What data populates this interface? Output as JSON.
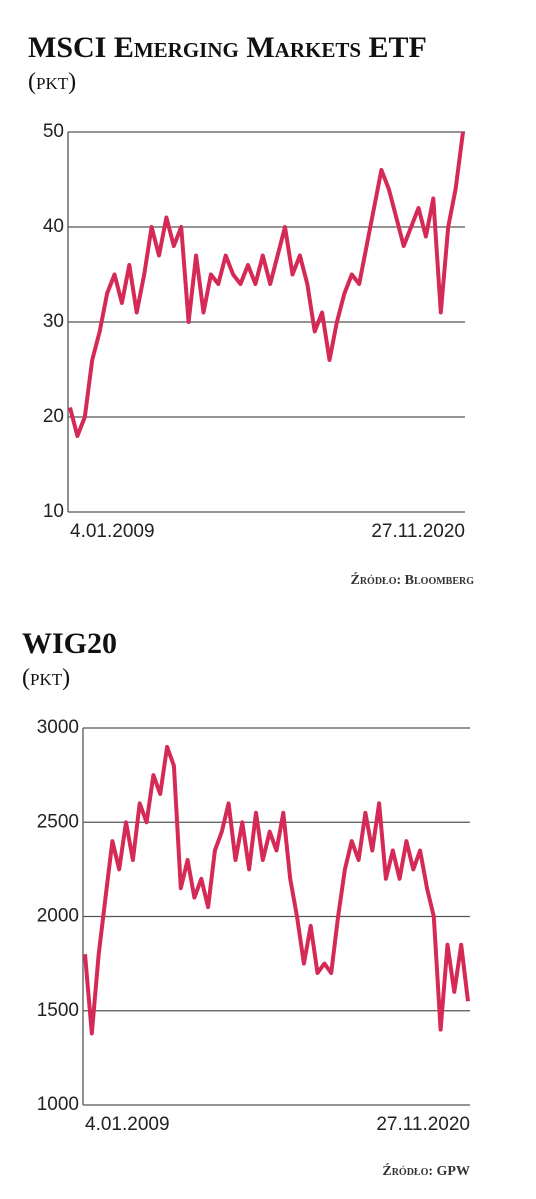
{
  "chart_data": [
    {
      "type": "line",
      "title": "MSCI Emerging Markets ETF",
      "unit": "(pkt)",
      "source": "Źródło: Bloomberg",
      "categories": [
        "4.01.2009",
        null,
        null,
        null,
        null,
        null,
        null,
        null,
        null,
        null,
        null,
        null,
        null,
        null,
        null,
        null,
        null,
        null,
        null,
        null,
        null,
        null,
        null,
        null,
        null,
        null,
        null,
        null,
        null,
        null,
        null,
        null,
        null,
        null,
        null,
        null,
        null,
        null,
        null,
        null,
        null,
        null,
        null,
        null,
        null,
        null,
        null,
        null,
        null,
        null,
        null,
        null,
        null,
        "27.11.2020"
      ],
      "values": [
        21,
        18,
        20,
        26,
        29,
        33,
        35,
        32,
        36,
        31,
        35,
        40,
        37,
        41,
        38,
        40,
        30,
        37,
        31,
        35,
        34,
        37,
        35,
        34,
        36,
        34,
        37,
        34,
        37,
        40,
        35,
        37,
        34,
        29,
        31,
        26,
        30,
        33,
        35,
        34,
        38,
        42,
        46,
        44,
        41,
        38,
        40,
        42,
        39,
        43,
        31,
        40,
        44,
        50
      ],
      "color": "#d42a55",
      "ylim": [
        10,
        50
      ],
      "yticks": [
        10,
        20,
        30,
        40,
        50
      ],
      "grid": true
    },
    {
      "type": "line",
      "title": "WIG20",
      "unit": "(pkt)",
      "source": "Źródło: GPW",
      "categories": [
        "4.01.2009",
        null,
        null,
        null,
        null,
        null,
        null,
        null,
        null,
        null,
        null,
        null,
        null,
        null,
        null,
        null,
        null,
        null,
        null,
        null,
        null,
        null,
        null,
        null,
        null,
        null,
        null,
        null,
        null,
        null,
        null,
        null,
        null,
        null,
        null,
        null,
        null,
        null,
        null,
        null,
        null,
        null,
        null,
        null,
        null,
        null,
        null,
        null,
        null,
        null,
        null,
        null,
        null,
        null,
        null,
        null,
        "27.11.2020"
      ],
      "values": [
        1800,
        1380,
        1800,
        2100,
        2400,
        2250,
        2500,
        2300,
        2600,
        2500,
        2750,
        2650,
        2900,
        2800,
        2150,
        2300,
        2100,
        2200,
        2050,
        2350,
        2450,
        2600,
        2300,
        2500,
        2250,
        2550,
        2300,
        2450,
        2350,
        2550,
        2200,
        2000,
        1750,
        1950,
        1700,
        1750,
        1700,
        2000,
        2250,
        2400,
        2300,
        2550,
        2350,
        2600,
        2200,
        2350,
        2200,
        2400,
        2250,
        2350,
        2150,
        2000,
        1400,
        1850,
        1600,
        1850,
        1550
      ],
      "color": "#d42a55",
      "ylim": [
        1000,
        3000
      ],
      "yticks": [
        1000,
        1500,
        2000,
        2500,
        3000
      ],
      "grid": true
    }
  ]
}
